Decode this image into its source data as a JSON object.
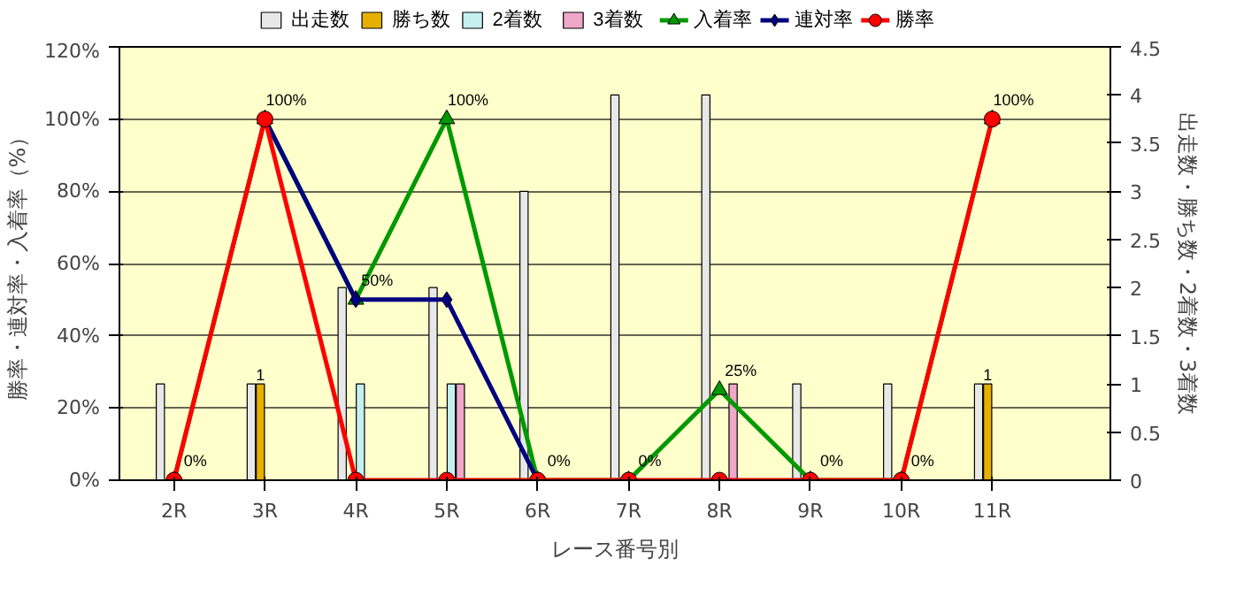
{
  "chart_data": {
    "type": "bar",
    "xlabel": "レース番号別",
    "ylabel": "勝率・連対率・入着率（%）",
    "y2label": "出走数・勝ち数・2着数・3着数",
    "categories": [
      "2R",
      "3R",
      "4R",
      "5R",
      "6R",
      "7R",
      "8R",
      "9R",
      "10R",
      "11R"
    ],
    "ylim": [
      0,
      120
    ],
    "yticks": [
      {
        "value": 0,
        "label": "0%"
      },
      {
        "value": 20,
        "label": "20%"
      },
      {
        "value": 40,
        "label": "40%"
      },
      {
        "value": 60,
        "label": "60%"
      },
      {
        "value": 80,
        "label": "80%"
      },
      {
        "value": 100,
        "label": "100%"
      },
      {
        "value": 120,
        "label": "120%"
      }
    ],
    "y2lim": [
      0,
      4.5
    ],
    "y2ticks": [
      0,
      0.5,
      1,
      1.5,
      2,
      2.5,
      3,
      3.5,
      4,
      4.5
    ],
    "grid": "y",
    "legend": "top",
    "series": [
      {
        "name": "出走数",
        "axis": "y2",
        "color": "#e8e8e8",
        "values": [
          1,
          1,
          2,
          2,
          3,
          4,
          4,
          1,
          1,
          1
        ]
      },
      {
        "name": "勝ち数",
        "axis": "y2",
        "color": "#e6b000",
        "values": [
          0,
          1,
          0,
          0,
          0,
          0,
          0,
          0,
          0,
          1
        ],
        "value_labels": [
          null,
          "1",
          null,
          null,
          null,
          null,
          null,
          null,
          null,
          "1"
        ]
      },
      {
        "name": "2着数",
        "axis": "y2",
        "color": "#c4f0f0",
        "values": [
          0,
          0,
          1,
          1,
          0,
          0,
          0,
          0,
          0,
          0
        ]
      },
      {
        "name": "3着数",
        "axis": "y2",
        "color": "#f0a8c8",
        "values": [
          0,
          0,
          0,
          1,
          0,
          0,
          1,
          0,
          0,
          0
        ]
      },
      {
        "name": "入着率",
        "type": "line",
        "color": "#009900",
        "marker": "triangle",
        "values": [
          0,
          100,
          50,
          100,
          0,
          0,
          25,
          0,
          0,
          100
        ],
        "value_labels": [
          "0%",
          "100%",
          "50%",
          "100%",
          "0%",
          "0%",
          "25%",
          "0%",
          "0%",
          "100%"
        ]
      },
      {
        "name": "連対率",
        "type": "line",
        "color": "#000080",
        "marker": "diamond",
        "values": [
          null,
          100,
          50,
          50,
          0,
          null,
          null,
          null,
          null,
          null
        ]
      },
      {
        "name": "勝率",
        "type": "line",
        "color": "#ff0000",
        "marker": "circle",
        "values": [
          0,
          100,
          0,
          0,
          0,
          0,
          0,
          0,
          0,
          100
        ]
      }
    ]
  }
}
